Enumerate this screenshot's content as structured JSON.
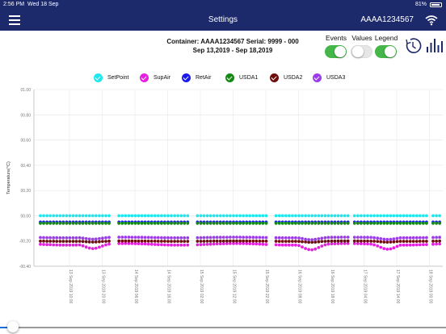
{
  "status_bar": {
    "time": "2:56 PM",
    "date": "Wed 18 Sep",
    "battery": "81%"
  },
  "nav": {
    "title": "Settings",
    "container_id": "AAAA1234567",
    "menu_icon": "hamburger-icon",
    "wifi_icon": "wifi-icon"
  },
  "info": {
    "line1": "Container: AAAA1234567 Serial: 9999 - 000",
    "line2": "Sep 13,2019 - Sep 18,2019"
  },
  "toggles": [
    {
      "label": "Events",
      "on": true
    },
    {
      "label": "Values",
      "on": false
    },
    {
      "label": "Legend",
      "on": true
    }
  ],
  "toolbar_icons": [
    "clock-icon",
    "bar-chart-icon"
  ],
  "colors": {
    "nav": "#1c2a6b",
    "toggle_on": "#45b649",
    "slider": "#1a6ed8"
  },
  "chart_data": {
    "type": "scatter",
    "ylabel": "Temperature(°C)",
    "ylim": [
      -0.4,
      1.0
    ],
    "y_ticks": [
      "01.00",
      "00.80",
      "00.60",
      "00.40",
      "00.20",
      "00.00",
      "-00.20",
      "-00.40"
    ],
    "x_ticks": [
      "13 Sep 2019 10:00",
      "13 Sep 2019 20:00",
      "14 Sep 2019 06:00",
      "14 Sep 2019 16:00",
      "15 Sep 2019 02:00",
      "15 Sep 2019 12:00",
      "15 Sep 2019 22:00",
      "16 Sep 2019 08:00",
      "16 Sep 2019 18:00",
      "17 Sep 2019 04:00",
      "17 Sep 2019 14:00",
      "18 Sep 2019 00:00"
    ],
    "legend": [
      {
        "name": "SetPoint",
        "color": "#1ee8ee"
      },
      {
        "name": "SupAir",
        "color": "#e61fe0"
      },
      {
        "name": "RetAir",
        "color": "#1a1aee"
      },
      {
        "name": "USDA1",
        "color": "#138a13"
      },
      {
        "name": "USDA2",
        "color": "#6e0d0d"
      },
      {
        "name": "USDA3",
        "color": "#9b3ce8"
      }
    ],
    "series": [
      {
        "name": "SetPoint",
        "values": [
          0.0
        ]
      },
      {
        "name": "SupAir",
        "values": [
          -0.22,
          -0.27
        ]
      },
      {
        "name": "RetAir",
        "values": [
          -0.05
        ]
      },
      {
        "name": "USDA1",
        "values": [
          -0.06
        ]
      },
      {
        "name": "USDA2",
        "values": [
          -0.2,
          -0.21
        ]
      },
      {
        "name": "USDA3",
        "values": [
          -0.17,
          -0.19
        ]
      }
    ]
  },
  "slider": {
    "position": 0.0
  }
}
